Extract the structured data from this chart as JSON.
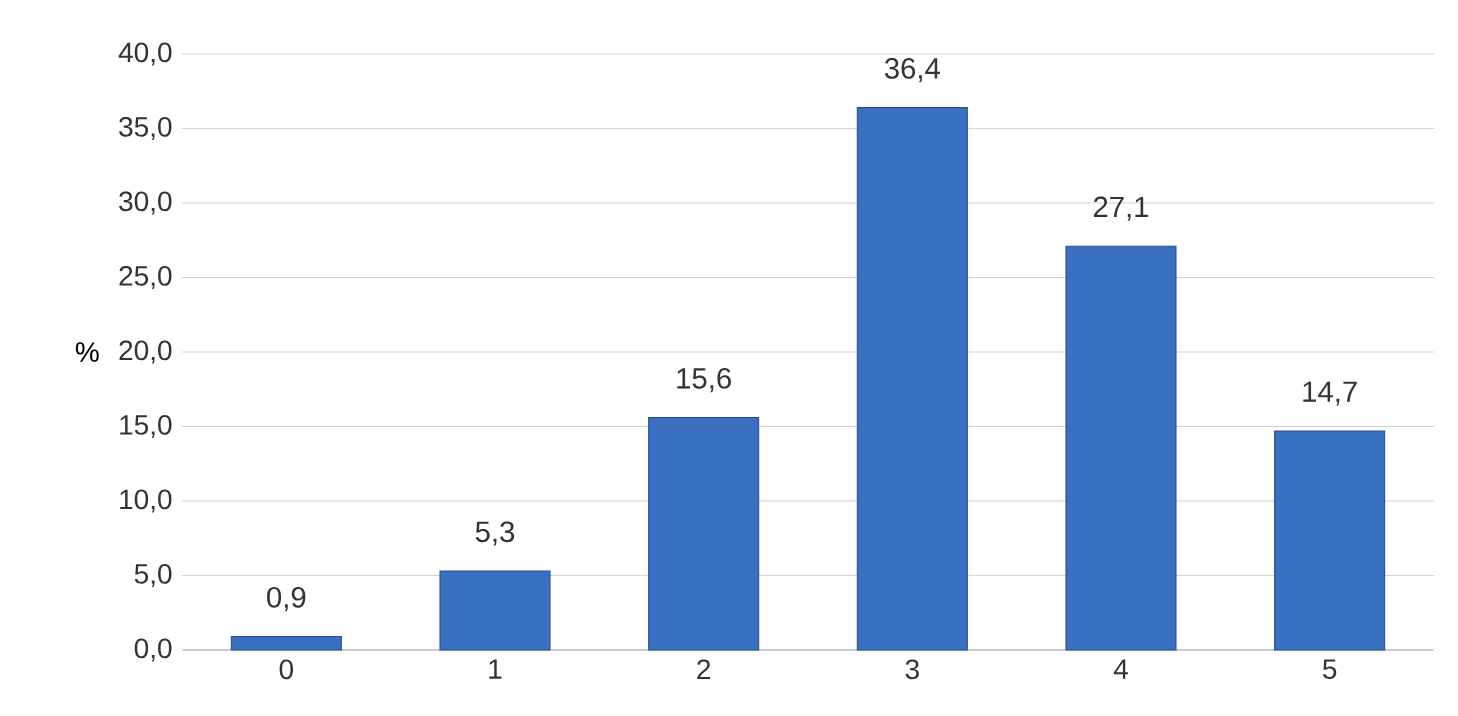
{
  "chart_data": {
    "type": "bar",
    "ylabel": "%",
    "categories": [
      "0",
      "1",
      "2",
      "3",
      "4",
      "5"
    ],
    "values": [
      0.9,
      5.3,
      15.6,
      36.4,
      27.1,
      14.7
    ],
    "value_labels": [
      "0,9",
      "5,3",
      "15,6",
      "36,4",
      "27,1",
      "14,7"
    ],
    "color": "#3a70c2",
    "ylim": [
      0,
      40
    ],
    "yticks": [
      {
        "value": 0,
        "label": "0,0"
      },
      {
        "value": 5,
        "label": "5,0"
      },
      {
        "value": 10,
        "label": "10,0"
      },
      {
        "value": 15,
        "label": "15,0"
      },
      {
        "value": 20,
        "label": "20,0"
      },
      {
        "value": 25,
        "label": "25,0"
      },
      {
        "value": 30,
        "label": "30,0"
      },
      {
        "value": 35,
        "label": "35,0"
      },
      {
        "value": 40,
        "label": "40,0"
      }
    ],
    "grid": "y"
  }
}
